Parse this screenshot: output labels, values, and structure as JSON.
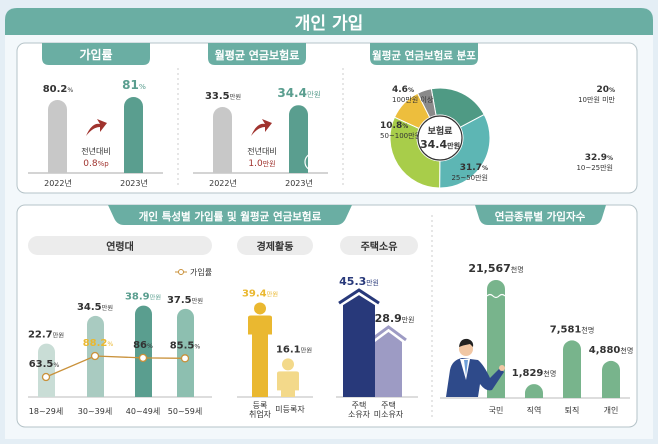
{
  "title": "개인 가입",
  "colors": {
    "header": "#6aaea3",
    "teal": "#5a9e8f",
    "gray": "#c8c8c8",
    "red": "#a0332e",
    "yellow": "#eab830",
    "lightyellow": "#f3d98a",
    "navy": "#28397a",
    "purple": "#9d9bc4",
    "green": "#78b48c"
  },
  "sections": {
    "rate": "가입률",
    "premium": "월평균 연금보험료",
    "distribution": "월평균 연금보험료 분포",
    "characteristics": "개인 특성별 가입률 및 월평균 연금보험료",
    "age": "연령대",
    "economic": "경제활동",
    "housing": "주택소유",
    "pension_types": "연금종류별 가입자수"
  },
  "rate_change": {
    "label": "전년대비",
    "value": "0.8",
    "unit": "%p"
  },
  "premium_change": {
    "label": "전년대비",
    "value": "1.0",
    "unit": "만원"
  },
  "donut_center": {
    "label": "보험료",
    "value": "34.4",
    "unit": "만원"
  },
  "legend_rate": "가입률",
  "chart_data": [
    {
      "id": "rate",
      "type": "bar",
      "categories": [
        "2022년",
        "2023년"
      ],
      "values": [
        80.2,
        81.0
      ],
      "unit": "%"
    },
    {
      "id": "premium",
      "type": "bar",
      "categories": [
        "2022년",
        "2023년"
      ],
      "values": [
        33.5,
        34.4
      ],
      "unit": "만원"
    },
    {
      "id": "distribution",
      "type": "pie",
      "categories": [
        "10만원 미만",
        "10~25만원",
        "25~50만원",
        "50~100만원",
        "100만원 이상"
      ],
      "values": [
        20.0,
        32.9,
        31.7,
        10.8,
        4.6
      ],
      "unit": "%",
      "colors": [
        "#4f9a84",
        "#5db6b4",
        "#a8cd4a",
        "#edbe3d",
        "#8a8a8a"
      ]
    },
    {
      "id": "age",
      "type": "bar",
      "categories": [
        "18~29세",
        "30~39세",
        "40~49세",
        "50~59세"
      ],
      "values": [
        22.7,
        34.5,
        38.9,
        37.5
      ],
      "unit": "만원",
      "line": {
        "name": "가입률",
        "values": [
          63.5,
          88.2,
          86.0,
          85.5
        ],
        "unit": "%"
      }
    },
    {
      "id": "economic",
      "type": "bar",
      "categories": [
        "등록 취업자",
        "미등록자"
      ],
      "values": [
        39.4,
        16.1
      ],
      "unit": "만원"
    },
    {
      "id": "housing",
      "type": "bar",
      "categories": [
        "주택 소유자",
        "주택 미소유자"
      ],
      "values": [
        45.3,
        28.9
      ],
      "unit": "만원"
    },
    {
      "id": "pension_types",
      "type": "bar",
      "categories": [
        "국민",
        "직역",
        "퇴직",
        "개인"
      ],
      "values": [
        21567,
        1829,
        7581,
        4880
      ],
      "labels": [
        "21,567",
        "1,829",
        "7,581",
        "4,880"
      ],
      "unit": "천명"
    }
  ]
}
